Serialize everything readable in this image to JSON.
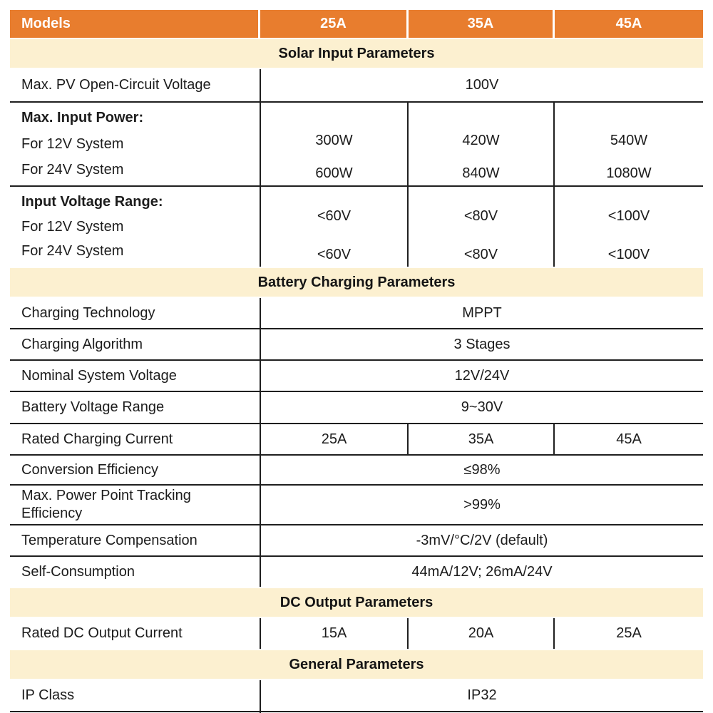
{
  "colors": {
    "header_bg": "#e87d2e",
    "header_text": "#ffffff",
    "section_bg": "#fcf0d0",
    "border": "#1f1f1f",
    "text": "#1c1c1c"
  },
  "header": {
    "models": "Models",
    "cols": [
      "25A",
      "35A",
      "45A"
    ]
  },
  "sections": {
    "solar": "Solar Input Parameters",
    "battery": "Battery Charging Parameters",
    "dc": "DC Output Parameters",
    "general": "General Parameters"
  },
  "rows": {
    "pv_voltage": {
      "label": "Max. PV Open-Circuit Voltage",
      "value": "100V"
    },
    "input_power": {
      "title": "Max. Input Power:",
      "sub1": "For 12V System",
      "sub2": "For 24V System",
      "v12": [
        "300W",
        "420W",
        "540W"
      ],
      "v24": [
        "600W",
        "840W",
        "1080W"
      ]
    },
    "input_voltage": {
      "title": "Input Voltage Range:",
      "sub1": "For 12V System",
      "sub2": "For 24V System",
      "v12": [
        "<60V",
        "<80V",
        "<100V"
      ],
      "v24": [
        "<60V",
        "<80V",
        "<100V"
      ]
    },
    "charging_tech": {
      "label": "Charging Technology",
      "value": "MPPT"
    },
    "charging_algo": {
      "label": "Charging Algorithm",
      "value": "3 Stages"
    },
    "nominal_voltage": {
      "label": "Nominal System Voltage",
      "value": "12V/24V"
    },
    "battery_range": {
      "label": "Battery Voltage Range",
      "value": "9~30V"
    },
    "rated_current": {
      "label": "Rated Charging Current",
      "values": [
        "25A",
        "35A",
        "45A"
      ]
    },
    "conversion_eff": {
      "label": "Conversion Efficiency",
      "value": "≤98%"
    },
    "mppt_eff": {
      "label": "Max. Power Point Tracking Efficiency",
      "value": ">99%"
    },
    "temp_comp": {
      "label": "Temperature Compensation",
      "value": "-3mV/°C/2V (default)"
    },
    "self_consumption": {
      "label": "Self-Consumption",
      "value": "44mA/12V; 26mA/24V"
    },
    "dc_output": {
      "label": "Rated DC Output Current",
      "values": [
        "15A",
        "20A",
        "25A"
      ]
    },
    "ip_class": {
      "label": "IP Class",
      "value": "IP32"
    }
  }
}
